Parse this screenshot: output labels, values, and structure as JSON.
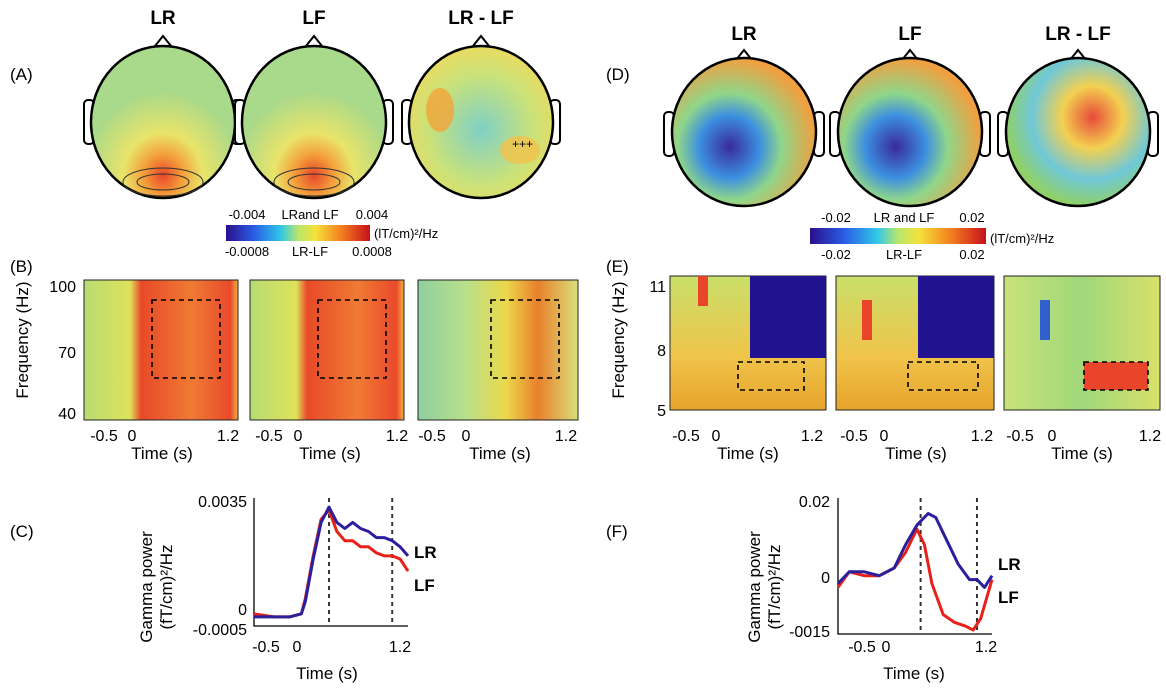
{
  "panels": {
    "A": "(A)",
    "B": "(B)",
    "C": "(C)",
    "D": "(D)",
    "E": "(E)",
    "F": "(F)"
  },
  "conditions": [
    "LR",
    "LF",
    "LR - LF"
  ],
  "colorbar_left": {
    "top_min": "-0.004",
    "top_label": "LRand LF",
    "top_max": "0.004",
    "bottom_min": "-0.0008",
    "bottom_label": "LR-LF",
    "bottom_max": "0.0008",
    "unit": "(lT/cm)²/Hz"
  },
  "colorbar_right": {
    "top_min": "-0.02",
    "top_label": "LR and LF",
    "top_max": "0.02",
    "bottom_min": "-0.02",
    "bottom_label": "LR-LF",
    "bottom_max": "0.02",
    "unit": "(lT/cm)²/Hz"
  },
  "tfr_left": {
    "ylabel": "Frequency (Hz)",
    "yticks": [
      "100",
      "70",
      "40"
    ],
    "xticks": [
      "-0.5",
      "0",
      "1.2"
    ],
    "xlabel": "Time (s)"
  },
  "tfr_right": {
    "ylabel": "Frequency (Hz)",
    "yticks": [
      "11",
      "8",
      "5"
    ],
    "xticks": [
      "-0.5",
      "0",
      "1.2"
    ],
    "xlabel": "Time (s)"
  },
  "colors": {
    "LR": "#2b1f9e",
    "LF": "#e8201a",
    "dashed": "#333333"
  },
  "chart_data": [
    {
      "type": "line",
      "panel": "C",
      "ylabel": "Gamma power\n(fT/cm)²/Hz",
      "xlabel": "Time (s)",
      "yticks": [
        "0.0035",
        "0",
        "-0.0005"
      ],
      "xticks": [
        "-0.5",
        "0",
        "1.2"
      ],
      "xlim": [
        -0.65,
        1.3
      ],
      "ylim": [
        -0.0007,
        0.0035
      ],
      "vlines": [
        0.3,
        1.1
      ],
      "series": [
        {
          "name": "LR",
          "x": [
            -0.65,
            -0.4,
            -0.2,
            -0.05,
            0.0,
            0.1,
            0.2,
            0.3,
            0.4,
            0.5,
            0.6,
            0.7,
            0.8,
            0.9,
            1.0,
            1.1,
            1.2,
            1.3
          ],
          "y": [
            -0.0004,
            -0.0004,
            -0.0004,
            -0.0003,
            0.0001,
            0.0015,
            0.0027,
            0.0032,
            0.0027,
            0.0025,
            0.0027,
            0.0025,
            0.0024,
            0.0022,
            0.0022,
            0.0021,
            0.0019,
            0.0016
          ]
        },
        {
          "name": "LF",
          "x": [
            -0.65,
            -0.4,
            -0.2,
            -0.05,
            0.0,
            0.1,
            0.2,
            0.3,
            0.4,
            0.5,
            0.6,
            0.7,
            0.8,
            0.9,
            1.0,
            1.1,
            1.2,
            1.3
          ],
          "y": [
            -0.0003,
            -0.0004,
            -0.0004,
            -0.0003,
            0.0002,
            0.0016,
            0.0028,
            0.0031,
            0.0024,
            0.0021,
            0.0021,
            0.0019,
            0.0019,
            0.0017,
            0.0016,
            0.0016,
            0.0015,
            0.0011
          ]
        }
      ]
    },
    {
      "type": "line",
      "panel": "F",
      "ylabel": "Gamma power\n(fT/cm)²/Hz",
      "xlabel": "Time (s)",
      "yticks": [
        "0.02",
        "0",
        "-0015"
      ],
      "xticks": [
        "-0.5",
        "0",
        "1.2"
      ],
      "xlim": [
        -0.75,
        1.3
      ],
      "ylim": [
        -0.015,
        0.02
      ],
      "vlines": [
        0.35,
        1.1
      ],
      "series": [
        {
          "name": "LR",
          "x": [
            -0.75,
            -0.6,
            -0.4,
            -0.2,
            0.0,
            0.15,
            0.3,
            0.45,
            0.55,
            0.7,
            0.85,
            1.0,
            1.1,
            1.2,
            1.3
          ],
          "y": [
            -0.002,
            0.001,
            0.001,
            0.0,
            0.002,
            0.008,
            0.013,
            0.016,
            0.015,
            0.009,
            0.003,
            -0.001,
            -0.001,
            -0.003,
            0.0
          ]
        },
        {
          "name": "LF",
          "x": [
            -0.75,
            -0.6,
            -0.4,
            -0.2,
            0.0,
            0.15,
            0.3,
            0.4,
            0.5,
            0.65,
            0.8,
            0.95,
            1.05,
            1.15,
            1.3
          ],
          "y": [
            -0.003,
            0.001,
            0.0,
            0.0,
            0.002,
            0.006,
            0.012,
            0.008,
            -0.002,
            -0.01,
            -0.012,
            -0.013,
            -0.014,
            -0.011,
            -0.001
          ]
        }
      ]
    }
  ]
}
